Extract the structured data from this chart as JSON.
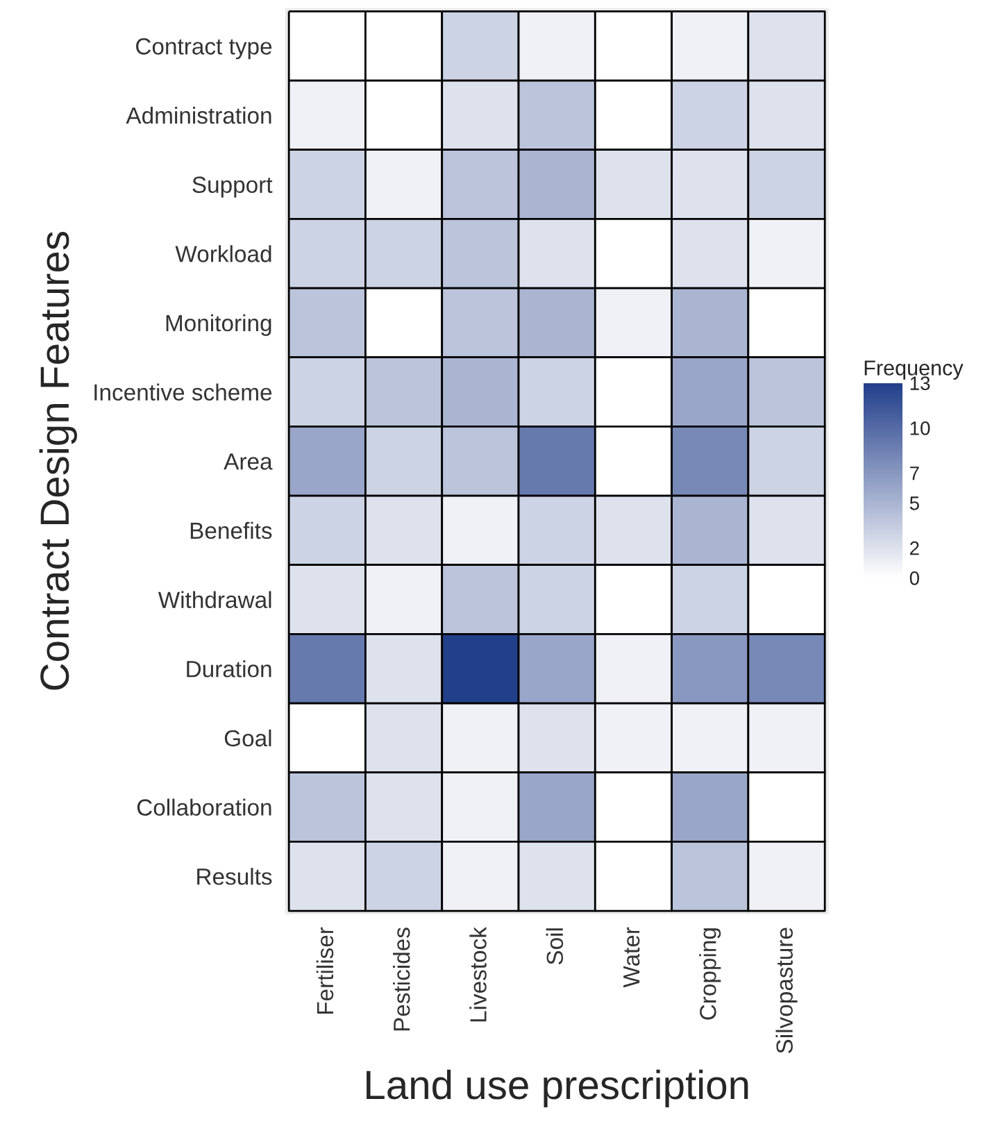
{
  "chart_data": {
    "type": "heatmap",
    "xlabel": "Land use prescription",
    "ylabel": "Contract Design Features",
    "clabel": "Frequency",
    "color": "#223f8a",
    "categories": [
      "Fertiliser",
      "Pesticides",
      "Livestock",
      "Soil",
      "Water",
      "Cropping",
      "Silvopasture"
    ],
    "y_categories": [
      "Contract type",
      "Administration",
      "Support",
      "Workload",
      "Monitoring",
      "Incentive scheme",
      "Area",
      "Benefits",
      "Withdrawal",
      "Duration",
      "Goal",
      "Collaboration",
      "Results"
    ],
    "cells": [
      [
        0,
        0,
        3,
        1,
        0,
        1,
        2
      ],
      [
        1,
        0,
        2,
        4,
        0,
        3,
        2
      ],
      [
        3,
        1,
        4,
        5,
        2,
        2,
        3
      ],
      [
        3,
        3,
        4,
        2,
        0,
        2,
        1
      ],
      [
        4,
        0,
        4,
        5,
        1,
        5,
        0
      ],
      [
        3,
        4,
        5,
        3,
        0,
        6,
        4
      ],
      [
        6,
        3,
        4,
        9,
        0,
        8,
        3
      ],
      [
        3,
        2,
        1,
        3,
        2,
        5,
        2
      ],
      [
        2,
        1,
        4,
        3,
        0,
        3,
        0
      ],
      [
        9,
        2,
        13,
        6,
        1,
        7,
        8
      ],
      [
        0,
        2,
        1,
        2,
        1,
        1,
        1
      ],
      [
        4,
        2,
        1,
        6,
        0,
        6,
        0
      ],
      [
        2,
        3,
        1,
        2,
        0,
        4,
        1
      ]
    ],
    "clim": [
      0,
      13
    ],
    "cticks": [
      0,
      2,
      5,
      7,
      10,
      13
    ]
  }
}
